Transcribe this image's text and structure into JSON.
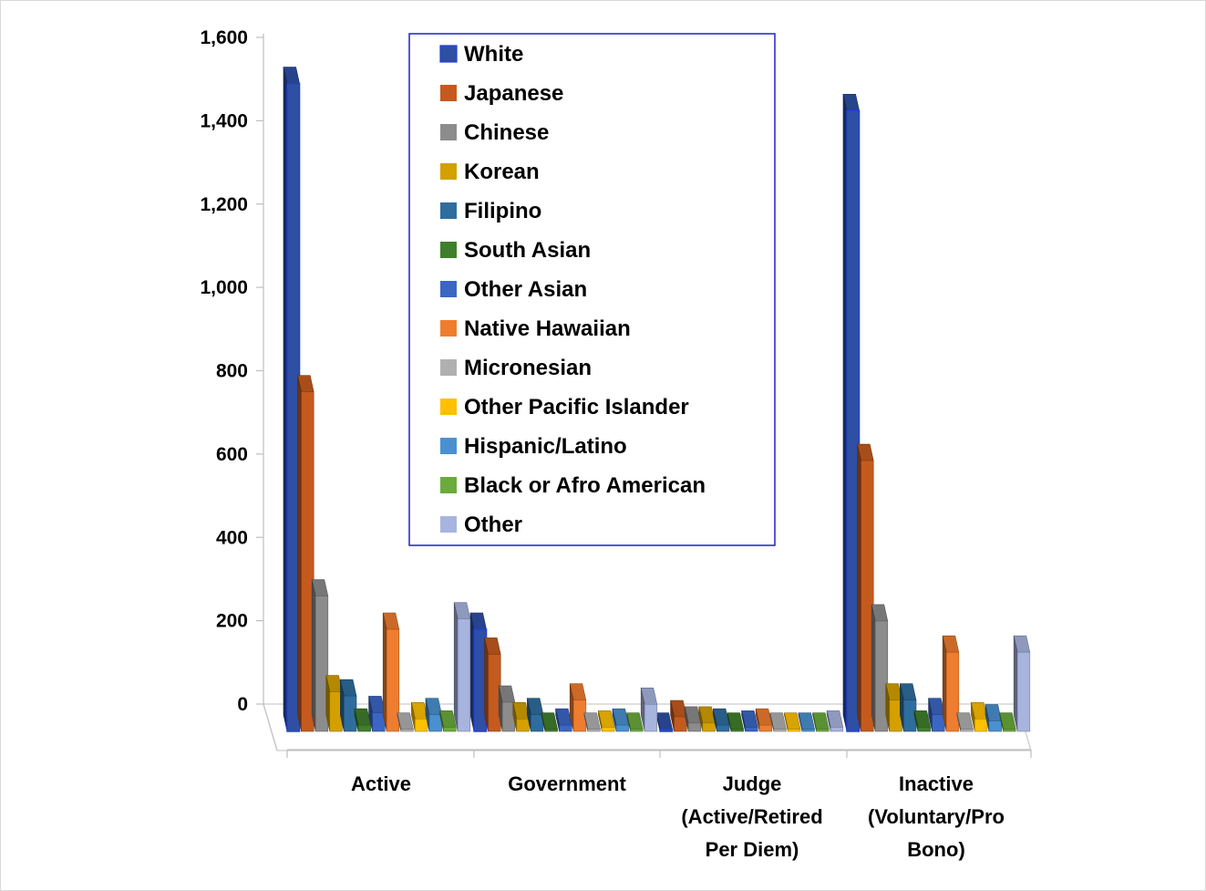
{
  "chart_data": {
    "type": "bar",
    "categories": [
      [
        "Active"
      ],
      [
        "Government"
      ],
      [
        "Judge",
        "(Active/Retired",
        "Per Diem)"
      ],
      [
        "Inactive",
        "(Voluntary/Pro",
        "Bono)"
      ]
    ],
    "ylim": [
      0,
      1600
    ],
    "yticks": [
      0,
      200,
      400,
      600,
      800,
      1000,
      1200,
      1400,
      1600
    ],
    "ytick_labels": [
      "0",
      "200",
      "400",
      "600",
      "800",
      "1,000",
      "1,200",
      "1,400",
      "1,600"
    ],
    "grid": false,
    "legend_position": "top-center",
    "series": [
      {
        "name": "White",
        "color": "#2e4fa3",
        "values": [
          1555,
          245,
          5,
          1490
        ]
      },
      {
        "name": "Japanese",
        "color": "#c55a1e",
        "values": [
          815,
          185,
          35,
          650
        ]
      },
      {
        "name": "Chinese",
        "color": "#8c8c8c",
        "values": [
          325,
          70,
          20,
          265
        ]
      },
      {
        "name": "Korean",
        "color": "#d4a000",
        "values": [
          95,
          30,
          20,
          75
        ]
      },
      {
        "name": "Filipino",
        "color": "#2f6d9e",
        "values": [
          85,
          40,
          15,
          75
        ]
      },
      {
        "name": "South Asian",
        "color": "#3f7f2c",
        "values": [
          15,
          5,
          5,
          10
        ]
      },
      {
        "name": "Other Asian",
        "color": "#3b66c4",
        "values": [
          45,
          15,
          10,
          40
        ]
      },
      {
        "name": "Native Hawaiian",
        "color": "#ef7d2f",
        "values": [
          245,
          75,
          15,
          190
        ]
      },
      {
        "name": "Micronesian",
        "color": "#b0b0b0",
        "values": [
          5,
          5,
          5,
          5
        ]
      },
      {
        "name": "Other Pacific Islander",
        "color": "#ffc000",
        "values": [
          30,
          10,
          5,
          30
        ]
      },
      {
        "name": "Hispanic/Latino",
        "color": "#4a90d0",
        "values": [
          40,
          15,
          5,
          25
        ]
      },
      {
        "name": " Black or Afro American",
        "color": "#6aab3c",
        "values": [
          10,
          5,
          5,
          5
        ]
      },
      {
        "name": "Other",
        "color": "#a7b4de",
        "values": [
          270,
          65,
          10,
          190
        ]
      }
    ]
  }
}
